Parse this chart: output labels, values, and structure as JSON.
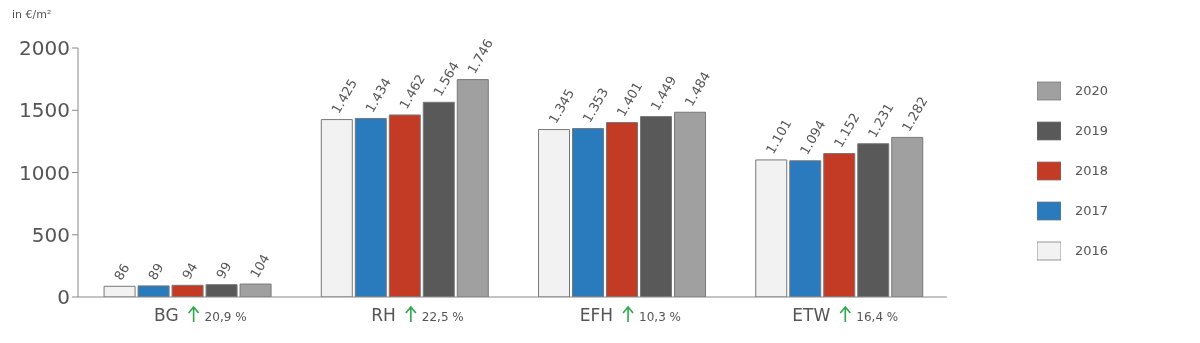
{
  "chart_data": {
    "type": "bar",
    "ylabel": "in €/m²",
    "categories": [
      "BG",
      "RH",
      "EFH",
      "ETW"
    ],
    "series": [
      {
        "name": "2016",
        "color": "#f2f2f2",
        "values": [
          86,
          1425,
          1345,
          1101
        ],
        "value_labels": [
          "86",
          "1.425",
          "1.345",
          "1.101"
        ]
      },
      {
        "name": "2017",
        "color": "#2a7bbd",
        "values": [
          89,
          1434,
          1353,
          1094
        ],
        "value_labels": [
          "89",
          "1.434",
          "1.353",
          "1.094"
        ]
      },
      {
        "name": "2018",
        "color": "#c33a25",
        "values": [
          94,
          1462,
          1401,
          1152
        ],
        "value_labels": [
          "94",
          "1.462",
          "1.401",
          "1.152"
        ]
      },
      {
        "name": "2019",
        "color": "#595959",
        "values": [
          99,
          1564,
          1449,
          1231
        ],
        "value_labels": [
          "99",
          "1.564",
          "1.449",
          "1.231"
        ]
      },
      {
        "name": "2020",
        "color": "#a0a0a0",
        "values": [
          104,
          1746,
          1484,
          1282
        ],
        "value_labels": [
          "104",
          "1.746",
          "1.484",
          "1.282"
        ]
      }
    ],
    "annotations": [
      "20,9 %",
      "22,5 %",
      "10,3 %",
      "16,4 %"
    ],
    "ylim": [
      0,
      2000
    ],
    "yticks": [
      0,
      500,
      1000,
      1500,
      2000
    ],
    "grid": false,
    "legend": "right"
  }
}
